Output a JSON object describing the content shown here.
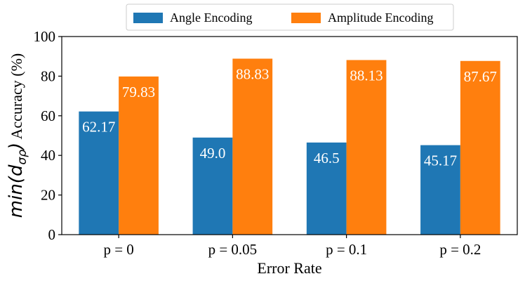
{
  "chart_data": {
    "type": "bar",
    "categories": [
      "p = 0",
      "p = 0.05",
      "p = 0.1",
      "p = 0.2"
    ],
    "series": [
      {
        "name": "Angle Encoding",
        "color": "#1f77b4",
        "values": [
          62.17,
          49.0,
          46.5,
          45.17
        ],
        "labels": [
          "62.17",
          "49.0",
          "46.5",
          "45.17"
        ]
      },
      {
        "name": "Amplitude Encoding",
        "color": "#ff7f0e",
        "values": [
          79.83,
          88.83,
          88.13,
          87.67
        ],
        "labels": [
          "79.83",
          "88.83",
          "88.13",
          "87.67"
        ]
      }
    ],
    "xlabel": "Error Rate",
    "ylabel_math_prefix": "min(d",
    "ylabel_math_sub": "σρ",
    "ylabel_math_suffix": ")",
    "ylabel_text": " Accuracy (%)",
    "ylim": [
      0,
      100
    ],
    "yticks": [
      0,
      20,
      40,
      60,
      80,
      100
    ],
    "grid": false,
    "legend_position": "top-center"
  }
}
